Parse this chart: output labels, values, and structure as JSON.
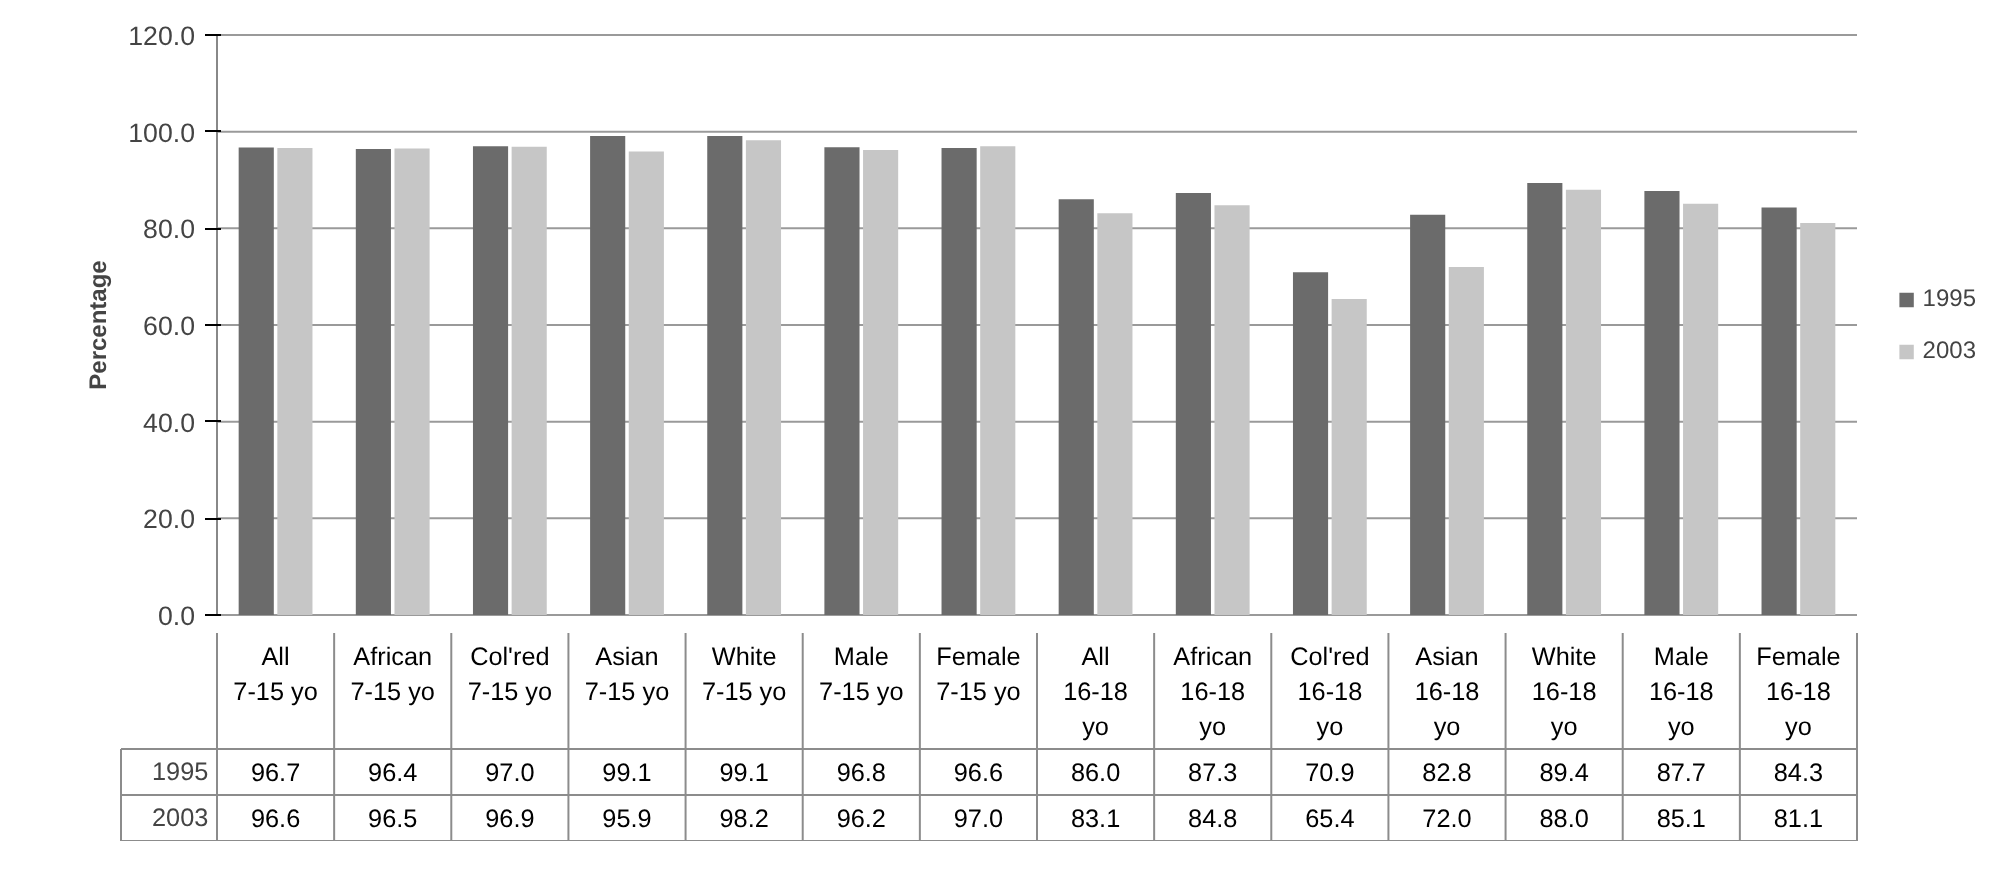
{
  "chart_data": {
    "type": "bar",
    "ylabel": "Percentage",
    "categories": [
      "All\n7-15 yo",
      "African\n7-15 yo",
      "Col'red\n7-15 yo",
      "Asian\n7-15 yo",
      "White\n7-15 yo",
      "Male\n7-15 yo",
      "Female\n7-15 yo",
      "All\n16-18\nyo",
      "African\n16-18\nyo",
      "Col'red\n16-18\nyo",
      "Asian\n16-18\nyo",
      "White\n16-18\nyo",
      "Male\n16-18\nyo",
      "Female\n16-18\nyo"
    ],
    "series": [
      {
        "name": "1995",
        "color": "#6b6b6b",
        "values": [
          96.7,
          96.4,
          97.0,
          99.1,
          99.1,
          96.8,
          96.6,
          86.0,
          87.3,
          70.9,
          82.8,
          89.4,
          87.7,
          84.3
        ],
        "value_labels": [
          "96.7",
          "96.4",
          "97.0",
          "99.1",
          "99.1",
          "96.8",
          "96.6",
          "86.0",
          "87.3",
          "70.9",
          "82.8",
          "89.4",
          "87.7",
          "84.3"
        ]
      },
      {
        "name": "2003",
        "color": "#c6c6c6",
        "values": [
          96.6,
          96.5,
          96.9,
          95.9,
          98.2,
          96.2,
          97.0,
          83.1,
          84.8,
          65.4,
          72.0,
          88.0,
          85.1,
          81.1
        ],
        "value_labels": [
          "96.6",
          "96.5",
          "96.9",
          "95.9",
          "98.2",
          "96.2",
          "97.0",
          "83.1",
          "84.8",
          "65.4",
          "72.0",
          "88.0",
          "85.1",
          "81.1"
        ]
      }
    ],
    "ylim": [
      0,
      120
    ],
    "yticks": [
      {
        "value": 0,
        "label": "0.0"
      },
      {
        "value": 20,
        "label": "20.0"
      },
      {
        "value": 40,
        "label": "40.0"
      },
      {
        "value": 60,
        "label": "60.0"
      },
      {
        "value": 80,
        "label": "80.0"
      },
      {
        "value": 100,
        "label": "100.0"
      },
      {
        "value": 120,
        "label": "120.0"
      }
    ],
    "grid": "y",
    "legend": "right"
  }
}
